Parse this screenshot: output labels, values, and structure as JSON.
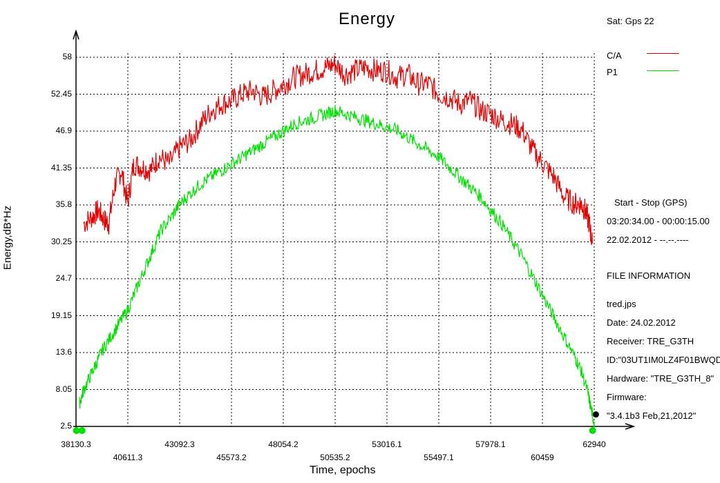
{
  "title": "Energy",
  "sat_label": "Sat: Gps   22",
  "legend": [
    {
      "label": "C/A",
      "color": "#e00000"
    },
    {
      "label": "P1",
      "color": "#00e000"
    }
  ],
  "info": {
    "start_stop_label": "Start  -  Stop  (GPS)",
    "time_range": "03:20:34.00 - 00:00:15.00",
    "date_range": "22.02.2012 - --.--.----",
    "file_info_title": "FILE INFORMATION",
    "file_name": "tred.jps",
    "date": "Date: 24.02.2012",
    "receiver": "Receiver: TRE_G3TH",
    "id": "ID:\"03UT1IM0LZ4F01BWQD",
    "hardware": "Hardware: \"TRE_G3TH_8\"",
    "firmware_label": "Firmware:",
    "firmware_value": "\"3.4.1b3 Feb,21,2012\""
  },
  "chart_data": {
    "type": "line",
    "title": "Energy",
    "xlabel": "Time, epochs",
    "ylabel": "Energy,dB*Hz",
    "xlim": [
      38130.3,
      62940
    ],
    "ylim": [
      2.5,
      58
    ],
    "x_ticks_upper": [
      "38130.3",
      "43092.3",
      "48054.2",
      "53016.1",
      "57978.1",
      "62940"
    ],
    "x_ticks_lower": [
      "40611.3",
      "45573.2",
      "50535.2",
      "55497.1",
      "60459"
    ],
    "y_ticks": [
      "58",
      "52.45",
      "46.9",
      "41.35",
      "35.8",
      "30.25",
      "24.7",
      "19.15",
      "13.6",
      "8.05",
      "2.5"
    ],
    "grid": true,
    "legend_position": "top-right",
    "series": [
      {
        "name": "C/A",
        "color": "#e00000",
        "x": [
          38500,
          38900,
          39200,
          39500,
          39700,
          40000,
          40300,
          40600,
          40900,
          41300,
          41700,
          42100,
          42600,
          43100,
          43600,
          44100,
          44600,
          45100,
          45600,
          46100,
          46600,
          47100,
          47600,
          48100,
          48600,
          49100,
          49600,
          50100,
          50535,
          51000,
          51500,
          52000,
          52500,
          53000,
          53500,
          54000,
          54500,
          55000,
          55500,
          56000,
          56500,
          57000,
          57500,
          58000,
          58500,
          59000,
          59500,
          60000,
          60500,
          61000,
          61500,
          62000,
          62300,
          62500,
          62700,
          62850
        ],
        "values": [
          33,
          34,
          35,
          33.5,
          33,
          39,
          41,
          36,
          42,
          41.5,
          41,
          43,
          42,
          44.5,
          45.5,
          48,
          50,
          51,
          51.5,
          52.5,
          53,
          52,
          53,
          54,
          55,
          55.5,
          56,
          56.5,
          57,
          55.5,
          56,
          56.5,
          56,
          56,
          55,
          55.5,
          54,
          54,
          52.5,
          52,
          51,
          51.5,
          50,
          49.5,
          48.5,
          48,
          47,
          44,
          42,
          40,
          37,
          36,
          36,
          35,
          33,
          30
        ]
      },
      {
        "name": "P1",
        "color": "#00e000",
        "x": [
          38300,
          38500,
          38800,
          39100,
          39400,
          39800,
          40200,
          40611,
          41000,
          41400,
          41800,
          42200,
          42700,
          43100,
          43600,
          44100,
          44600,
          45100,
          45600,
          46100,
          46600,
          47100,
          47600,
          48100,
          48600,
          49100,
          49600,
          50100,
          50535,
          51000,
          51500,
          52000,
          52500,
          53000,
          53500,
          54000,
          54500,
          55000,
          55500,
          56000,
          56500,
          57000,
          57500,
          58000,
          58500,
          59000,
          59500,
          60000,
          60500,
          61000,
          61500,
          62000,
          62300,
          62600,
          62800,
          62940
        ],
        "values": [
          6,
          8,
          10,
          12,
          14,
          16,
          18,
          20,
          23,
          26,
          29,
          32,
          34,
          36,
          37.5,
          39,
          40,
          41,
          42,
          43,
          44,
          45,
          46,
          47,
          48,
          48.5,
          49,
          49.5,
          50,
          49.5,
          49,
          48.5,
          48,
          47.5,
          47,
          46,
          45,
          44,
          43,
          41.5,
          40,
          38.5,
          37,
          35,
          33,
          30.5,
          28,
          25,
          22,
          19,
          16,
          13,
          11,
          8,
          5,
          3
        ]
      }
    ]
  }
}
